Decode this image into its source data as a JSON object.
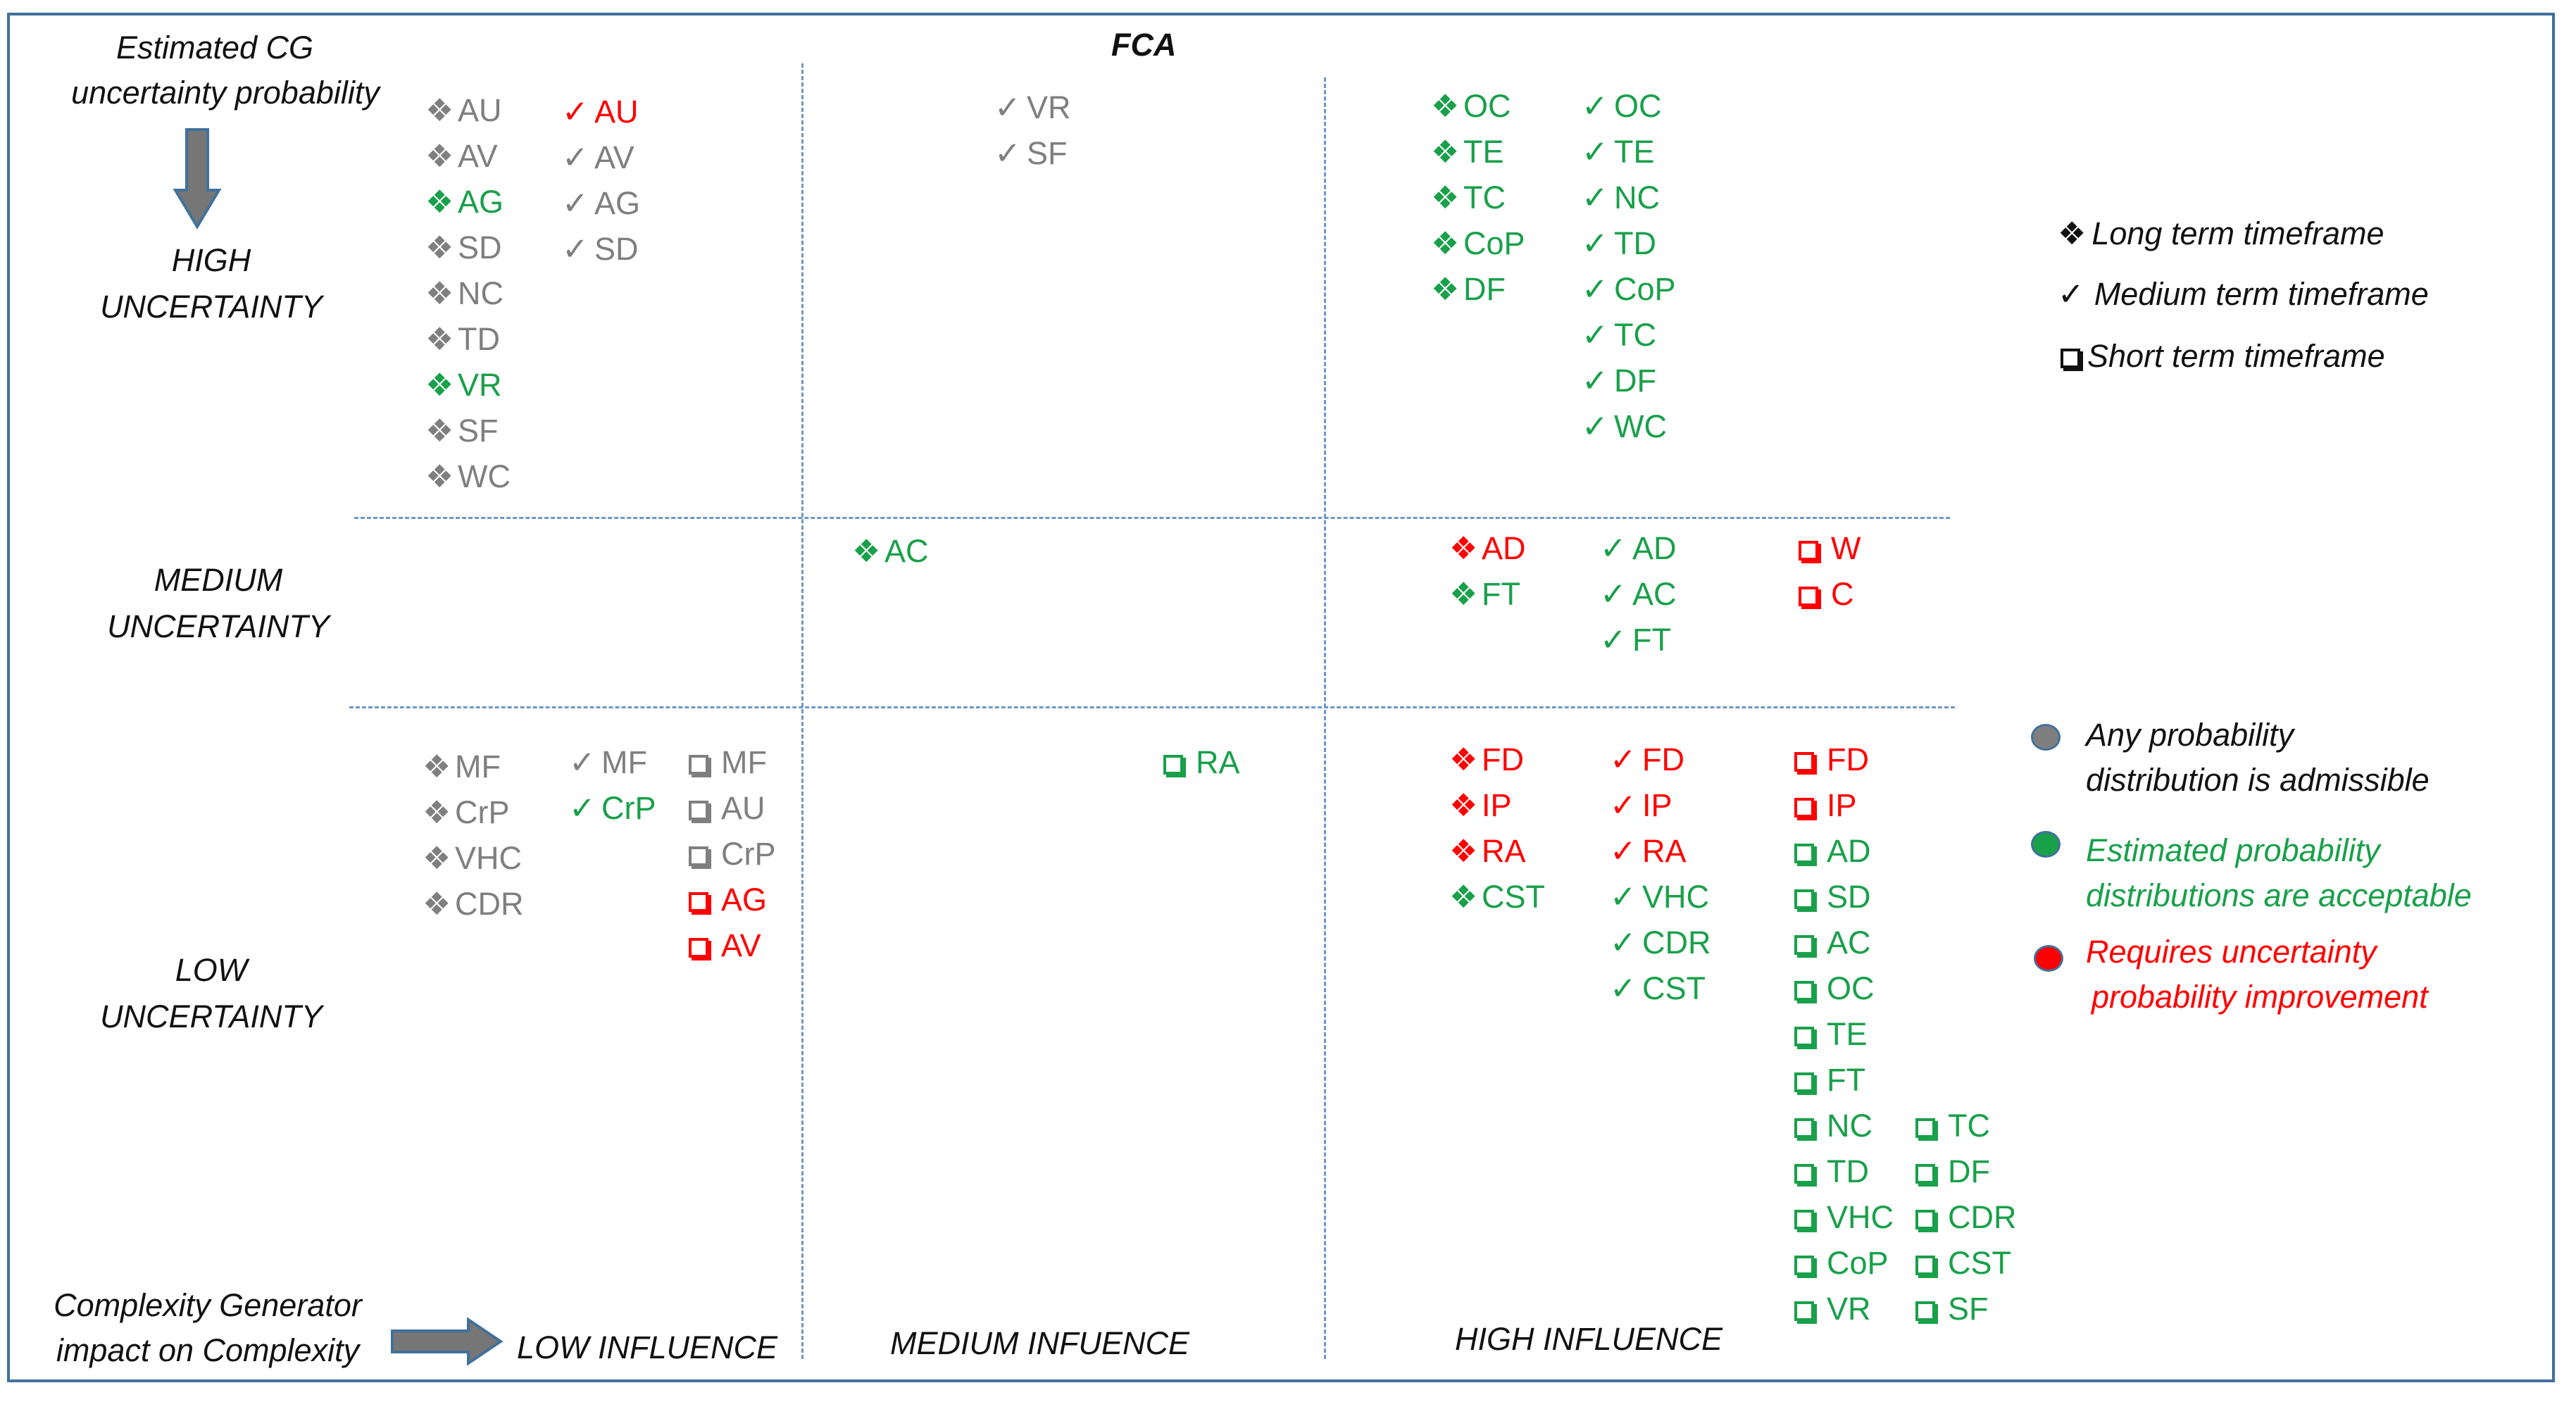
{
  "title": "FCA",
  "axes": {
    "y_title_line1": "Estimated CG",
    "y_title_line2": "uncertainty probability",
    "high_1": "HIGH",
    "high_2": "UNCERTAINTY",
    "medium_1": "MEDIUM",
    "medium_2": "UNCERTAINTY",
    "low_1": "LOW",
    "low_2": "UNCERTAINTY",
    "x_title_line1": "Complexity Generator",
    "x_title_line2": "impact on Complexity",
    "low_influence": "LOW INFLUENCE",
    "medium_influence": "MEDIUM INFUENCE",
    "high_influence": "HIGH INFLUENCE"
  },
  "legend_timeframe": {
    "long": "Long term timeframe",
    "medium": "Medium term timeframe",
    "short": "Short term timeframe"
  },
  "legend_status": {
    "any_1": "Any  probability",
    "any_2": "distribution is admissible",
    "acc_1": "Estimated probability",
    "acc_2": "distributions  are acceptable",
    "req_1": "Requires uncertainty",
    "req_2": "probability  improvement"
  },
  "colors": {
    "gray": "#7f7f7f",
    "green": "#19a04a",
    "red": "#ff0000",
    "frame": "#41719c",
    "grid": "#6f97c8"
  },
  "columns": [
    {
      "id": "hl-long",
      "sym": "long",
      "items": [
        {
          "t": "AU",
          "c": "gray"
        },
        {
          "t": "AV",
          "c": "gray"
        },
        {
          "t": "AG",
          "c": "green"
        },
        {
          "t": "SD",
          "c": "gray"
        },
        {
          "t": "NC",
          "c": "gray"
        },
        {
          "t": "TD",
          "c": "gray"
        },
        {
          "t": "VR",
          "c": "green"
        },
        {
          "t": "SF",
          "c": "gray"
        },
        {
          "t": "WC",
          "c": "gray"
        }
      ]
    },
    {
      "id": "hl-medium",
      "sym": "medium",
      "items": [
        {
          "t": "AU",
          "c": "red"
        },
        {
          "t": "AV",
          "c": "gray"
        },
        {
          "t": "AG",
          "c": "gray"
        },
        {
          "t": "SD",
          "c": "gray"
        }
      ]
    },
    {
      "id": "hm-medium",
      "sym": "medium",
      "items": [
        {
          "t": "VR",
          "c": "gray"
        },
        {
          "t": "SF",
          "c": "gray"
        }
      ]
    },
    {
      "id": "hh-long",
      "sym": "long",
      "items": [
        {
          "t": "OC",
          "c": "green"
        },
        {
          "t": "TE",
          "c": "green"
        },
        {
          "t": "TC",
          "c": "green"
        },
        {
          "t": "CoP",
          "c": "green"
        },
        {
          "t": "DF",
          "c": "green"
        }
      ]
    },
    {
      "id": "hh-medium",
      "sym": "medium",
      "items": [
        {
          "t": "OC",
          "c": "green"
        },
        {
          "t": "TE",
          "c": "green"
        },
        {
          "t": "NC",
          "c": "green"
        },
        {
          "t": "TD",
          "c": "green"
        },
        {
          "t": "CoP",
          "c": "green"
        },
        {
          "t": "TC",
          "c": "green"
        },
        {
          "t": "DF",
          "c": "green"
        },
        {
          "t": "WC",
          "c": "green"
        }
      ]
    },
    {
      "id": "mm-long",
      "sym": "long",
      "items": [
        {
          "t": "AC",
          "c": "green"
        }
      ]
    },
    {
      "id": "mh-long",
      "sym": "long",
      "items": [
        {
          "t": "AD",
          "c": "red"
        },
        {
          "t": "FT",
          "c": "green"
        }
      ]
    },
    {
      "id": "mh-medium",
      "sym": "medium",
      "items": [
        {
          "t": "AD",
          "c": "green"
        },
        {
          "t": "AC",
          "c": "green"
        },
        {
          "t": "FT",
          "c": "green"
        }
      ]
    },
    {
      "id": "mh-short",
      "sym": "short",
      "items": [
        {
          "t": "W",
          "c": "red"
        },
        {
          "t": "C",
          "c": "red"
        }
      ]
    },
    {
      "id": "ll-long",
      "sym": "long",
      "items": [
        {
          "t": "MF",
          "c": "gray"
        },
        {
          "t": "CrP",
          "c": "gray"
        },
        {
          "t": "VHC",
          "c": "gray"
        },
        {
          "t": "CDR",
          "c": "gray"
        }
      ]
    },
    {
      "id": "ll-medium",
      "sym": "medium",
      "items": [
        {
          "t": "MF",
          "c": "gray"
        },
        {
          "t": "CrP",
          "c": "green"
        }
      ]
    },
    {
      "id": "ll-short",
      "sym": "short",
      "items": [
        {
          "t": "MF",
          "c": "gray"
        },
        {
          "t": "AU",
          "c": "gray"
        },
        {
          "t": "CrP",
          "c": "gray"
        },
        {
          "t": "AG",
          "c": "red"
        },
        {
          "t": "AV",
          "c": "red"
        }
      ]
    },
    {
      "id": "lm-short",
      "sym": "short",
      "items": [
        {
          "t": "RA",
          "c": "green"
        }
      ]
    },
    {
      "id": "lh-long",
      "sym": "long",
      "items": [
        {
          "t": "FD",
          "c": "red"
        },
        {
          "t": "IP",
          "c": "red"
        },
        {
          "t": "RA",
          "c": "red"
        },
        {
          "t": "CST",
          "c": "green"
        }
      ]
    },
    {
      "id": "lh-medium",
      "sym": "medium",
      "items": [
        {
          "t": "FD",
          "c": "red"
        },
        {
          "t": "IP",
          "c": "red"
        },
        {
          "t": "RA",
          "c": "red"
        },
        {
          "t": "VHC",
          "c": "green"
        },
        {
          "t": "CDR",
          "c": "green"
        },
        {
          "t": "CST",
          "c": "green"
        }
      ]
    },
    {
      "id": "lh-short-a",
      "sym": "short",
      "items": [
        {
          "t": "FD",
          "c": "red"
        },
        {
          "t": "IP",
          "c": "red"
        },
        {
          "t": "AD",
          "c": "green"
        },
        {
          "t": "SD",
          "c": "green"
        },
        {
          "t": "AC",
          "c": "green"
        },
        {
          "t": "OC",
          "c": "green"
        },
        {
          "t": "TE",
          "c": "green"
        },
        {
          "t": "FT",
          "c": "green"
        },
        {
          "t": "NC",
          "c": "green"
        },
        {
          "t": "TD",
          "c": "green"
        },
        {
          "t": "VHC",
          "c": "green"
        },
        {
          "t": "CoP",
          "c": "green"
        },
        {
          "t": "VR",
          "c": "green"
        }
      ]
    },
    {
      "id": "lh-short-b",
      "sym": "short",
      "items": [
        {
          "t": "TC",
          "c": "green"
        },
        {
          "t": "DF",
          "c": "green"
        },
        {
          "t": "CDR",
          "c": "green"
        },
        {
          "t": "CST",
          "c": "green"
        },
        {
          "t": "SF",
          "c": "green"
        }
      ]
    }
  ]
}
